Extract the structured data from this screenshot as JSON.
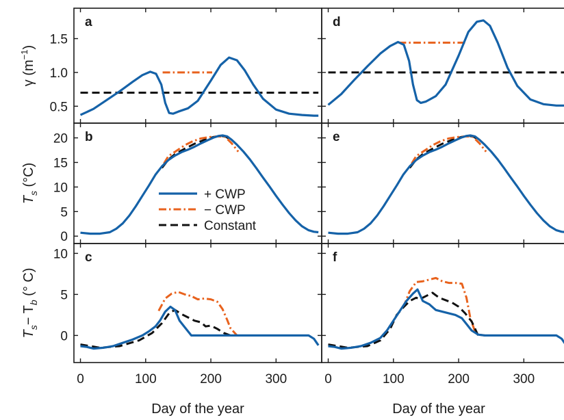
{
  "chart_data": {
    "type": "line",
    "layout": "3 rows x 2 columns, shared axes",
    "xlabel": "Day of the year",
    "xlim": [
      -10,
      370
    ],
    "xticks": [
      0,
      100,
      200,
      300
    ],
    "colors": {
      "plus_cwp": "#1562a8",
      "minus_cwp": "#e8621d",
      "constant": "#111111"
    },
    "legend": {
      "placement": "inside panel b, lower-center",
      "entries": [
        {
          "key": "plus_cwp",
          "label": "+ CWP",
          "style": "solid"
        },
        {
          "key": "minus_cwp",
          "label": "− CWP",
          "style": "dash-dot"
        },
        {
          "key": "constant",
          "label": "Constant",
          "style": "dashed"
        }
      ]
    },
    "rows": [
      {
        "ylabel_main": "γ (m",
        "ylabel_sup": "−1",
        "ylabel_end": ")",
        "ylim": [
          0.25,
          1.95
        ],
        "yticks": [
          0.5,
          1.0,
          1.5
        ],
        "ytick_labels": [
          "0.5",
          "1.0",
          "1.5"
        ]
      },
      {
        "ylabel_main": "T",
        "ylabel_sub": "s",
        "ylabel_end": " (°C)",
        "ylim": [
          -1.5,
          23
        ],
        "yticks": [
          0,
          5,
          10,
          15,
          20
        ],
        "ytick_labels": [
          "0",
          "5",
          "10",
          "15",
          "20"
        ]
      },
      {
        "ylabel_parts": [
          "T",
          "s",
          "− T",
          "b",
          " (° C)"
        ],
        "ylim": [
          -3.3,
          11.2
        ],
        "yticks": [
          0,
          5,
          10
        ],
        "ytick_labels": [
          "0",
          "5",
          "10"
        ]
      }
    ],
    "panels": [
      {
        "letter": "a",
        "row": 0,
        "col": 0,
        "series": [
          {
            "key": "constant",
            "x": [
              0,
              365
            ],
            "y": [
              0.7,
              0.7
            ]
          },
          {
            "key": "minus_cwp",
            "x": [
              126,
              202
            ],
            "y": [
              1.0,
              1.0
            ]
          },
          {
            "key": "plus_cwp",
            "x": [
              0,
              20,
              40,
              60,
              80,
              95,
              107,
              116,
              124,
              130,
              136,
              142,
              150,
              165,
              180,
              200,
              215,
              228,
              240,
              252,
              265,
              280,
              300,
              320,
              340,
              358,
              365
            ],
            "y": [
              0.37,
              0.46,
              0.59,
              0.72,
              0.86,
              0.96,
              1.01,
              0.98,
              0.82,
              0.55,
              0.4,
              0.39,
              0.42,
              0.47,
              0.58,
              0.88,
              1.11,
              1.22,
              1.18,
              1.03,
              0.82,
              0.61,
              0.45,
              0.39,
              0.37,
              0.36,
              0.36
            ]
          }
        ]
      },
      {
        "letter": "d",
        "row": 0,
        "col": 1,
        "series": [
          {
            "key": "constant",
            "x": [
              0,
              365
            ],
            "y": [
              1.0,
              1.0
            ]
          },
          {
            "key": "minus_cwp",
            "x": [
              108,
              212
            ],
            "y": [
              1.44,
              1.44
            ]
          },
          {
            "key": "plus_cwp",
            "x": [
              0,
              20,
              40,
              60,
              80,
              95,
              107,
              116,
              124,
              130,
              136,
              142,
              150,
              165,
              180,
              200,
              215,
              228,
              238,
              248,
              260,
              275,
              290,
              310,
              330,
              350,
              365
            ],
            "y": [
              0.52,
              0.68,
              0.89,
              1.09,
              1.28,
              1.39,
              1.45,
              1.41,
              1.17,
              0.82,
              0.59,
              0.55,
              0.57,
              0.65,
              0.82,
              1.25,
              1.6,
              1.75,
              1.77,
              1.69,
              1.44,
              1.07,
              0.8,
              0.6,
              0.53,
              0.51,
              0.51
            ]
          }
        ]
      },
      {
        "letter": "b",
        "row": 1,
        "col": 0,
        "series": [
          {
            "key": "constant",
            "x": [
              125,
              135,
              145,
              160,
              175,
              190,
              205,
              215,
              222,
              230
            ],
            "y": [
              13.9,
              15.6,
              16.7,
              17.8,
              18.8,
              19.6,
              20.2,
              20.4,
              20.3,
              19.7
            ]
          },
          {
            "key": "minus_cwp",
            "x": [
              128,
              135,
              142,
              150,
              160,
              172,
              185,
              200,
              212,
              222,
              232,
              242
            ],
            "y": [
              14.8,
              16.3,
              16.9,
              17.6,
              18.5,
              19.3,
              19.9,
              20.2,
              20.3,
              20.2,
              18.9,
              17.2
            ]
          },
          {
            "key": "plus_cwp",
            "x": [
              0,
              15,
              30,
              45,
              55,
              65,
              75,
              85,
              95,
              105,
              115,
              125,
              135,
              145,
              155,
              165,
              175,
              185,
              195,
              205,
              212,
              218,
              225,
              232,
              240,
              250,
              260,
              270,
              280,
              290,
              300,
              310,
              320,
              330,
              340,
              350,
              358,
              365
            ],
            "y": [
              0.7,
              0.5,
              0.5,
              0.8,
              1.5,
              2.6,
              4.2,
              6.1,
              8.2,
              10.3,
              12.5,
              14.2,
              15.5,
              16.4,
              17.1,
              17.6,
              18.2,
              18.9,
              19.5,
              20.1,
              20.4,
              20.5,
              20.3,
              19.6,
              18.6,
              17.2,
              15.6,
              13.8,
              11.9,
              10.1,
              8.2,
              6.4,
              4.7,
              3.2,
              2.0,
              1.2,
              0.9,
              0.8
            ]
          }
        ]
      },
      {
        "letter": "e",
        "row": 1,
        "col": 1,
        "series": [
          {
            "key": "constant",
            "x": [
              125,
              135,
              145,
              160,
              175,
              190,
              205,
              215,
              222,
              230
            ],
            "y": [
              13.9,
              15.6,
              16.7,
              17.8,
              18.8,
              19.6,
              20.2,
              20.4,
              20.3,
              19.7
            ]
          },
          {
            "key": "minus_cwp",
            "x": [
              128,
              135,
              142,
              150,
              160,
              172,
              185,
              200,
              212,
              222,
              232,
              242
            ],
            "y": [
              14.8,
              16.3,
              16.9,
              17.6,
              18.5,
              19.3,
              19.9,
              20.2,
              20.3,
              20.2,
              18.9,
              17.2
            ]
          },
          {
            "key": "plus_cwp",
            "x": [
              0,
              15,
              30,
              45,
              55,
              65,
              75,
              85,
              95,
              105,
              115,
              125,
              135,
              145,
              155,
              165,
              175,
              185,
              195,
              205,
              212,
              218,
              225,
              232,
              240,
              250,
              260,
              270,
              280,
              290,
              300,
              310,
              320,
              330,
              340,
              350,
              358,
              365
            ],
            "y": [
              0.7,
              0.5,
              0.5,
              0.8,
              1.5,
              2.6,
              4.2,
              6.1,
              8.2,
              10.3,
              12.5,
              14.2,
              15.5,
              16.4,
              17.1,
              17.6,
              18.2,
              18.9,
              19.5,
              20.1,
              20.4,
              20.5,
              20.3,
              19.6,
              18.6,
              17.2,
              15.6,
              13.8,
              11.9,
              10.1,
              8.2,
              6.4,
              4.7,
              3.2,
              2.0,
              1.2,
              0.9,
              0.8
            ]
          }
        ]
      },
      {
        "letter": "c",
        "row": 2,
        "col": 0,
        "series": [
          {
            "key": "minus_cwp",
            "x": [
              120,
              130,
              140,
              150,
              160,
              170,
              180,
              190,
              200,
              210,
              218,
              225,
              230,
              240
            ],
            "y": [
              3.0,
              4.5,
              5.1,
              5.3,
              5.0,
              4.8,
              4.4,
              4.5,
              4.4,
              4.1,
              3.2,
              1.9,
              0.9,
              0.0
            ]
          },
          {
            "key": "constant",
            "x": [
              0,
              30,
              60,
              90,
              110,
              125,
              137,
              145,
              155,
              165,
              175,
              185,
              192,
              200,
              210,
              220,
              230
            ],
            "y": [
              -1.1,
              -1.5,
              -1.3,
              -0.6,
              0.3,
              1.5,
              2.8,
              3.1,
              2.6,
              2.2,
              1.8,
              1.6,
              1.1,
              1.2,
              0.8,
              0.3,
              0.0
            ]
          },
          {
            "key": "plus_cwp",
            "x": [
              0,
              10,
              20,
              35,
              50,
              65,
              80,
              95,
              105,
              115,
              122,
              130,
              138,
              145,
              152,
              160,
              166,
              170,
              180,
              200,
              250,
              300,
              350,
              358,
              365
            ],
            "y": [
              -1.3,
              -1.4,
              -1.6,
              -1.5,
              -1.3,
              -0.9,
              -0.5,
              0.0,
              0.5,
              1.1,
              1.8,
              2.9,
              3.5,
              3.1,
              1.8,
              1.0,
              0.4,
              0.0,
              0.0,
              0.0,
              0.0,
              0.0,
              0.0,
              -0.4,
              -1.2
            ]
          }
        ]
      },
      {
        "letter": "f",
        "row": 2,
        "col": 1,
        "series": [
          {
            "key": "minus_cwp",
            "x": [
              115,
              125,
              135,
              145,
              155,
              165,
              175,
              185,
              195,
              205,
              212,
              218,
              225,
              230,
              240
            ],
            "y": [
              3.4,
              5.4,
              6.5,
              6.6,
              6.8,
              7.0,
              6.6,
              6.4,
              6.4,
              6.3,
              4.6,
              2.1,
              0.5,
              0.1,
              0.0
            ]
          },
          {
            "key": "constant",
            "x": [
              0,
              30,
              60,
              80,
              95,
              105,
              115,
              125,
              135,
              140,
              150,
              160,
              170,
              180,
              190,
              200,
              210,
              220,
              230
            ],
            "y": [
              -1.1,
              -1.5,
              -1.3,
              -0.6,
              0.8,
              2.5,
              3.4,
              4.2,
              4.6,
              4.4,
              4.8,
              5.2,
              4.6,
              4.3,
              4.0,
              3.5,
              2.7,
              1.7,
              0.0
            ]
          },
          {
            "key": "plus_cwp",
            "x": [
              0,
              10,
              20,
              35,
              50,
              65,
              80,
              90,
              100,
              110,
              120,
              130,
              137,
              145,
              155,
              165,
              180,
              195,
              205,
              212,
              220,
              230,
              240,
              250,
              260,
              300,
              350,
              358,
              365
            ],
            "y": [
              -1.3,
              -1.4,
              -1.6,
              -1.5,
              -1.3,
              -0.9,
              -0.3,
              0.6,
              1.8,
              3.0,
              4.2,
              5.1,
              5.6,
              4.2,
              3.8,
              3.1,
              2.8,
              2.5,
              2.1,
              1.4,
              0.6,
              0.1,
              0.0,
              0.0,
              0.0,
              0.0,
              0.0,
              -0.4,
              -1.2
            ]
          }
        ]
      }
    ]
  }
}
